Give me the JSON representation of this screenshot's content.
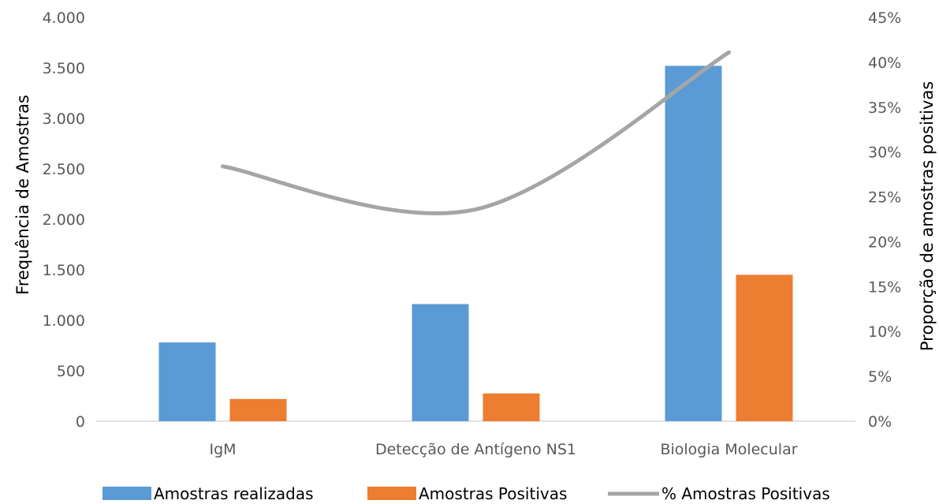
{
  "chart_data": {
    "type": "bar",
    "categories": [
      "IgM",
      "Detecção de Antígeno NS1",
      "Biologia Molecular"
    ],
    "series": [
      {
        "name": "Amostras realizadas",
        "kind": "bar",
        "axis": "left",
        "color": "#5B9BD5",
        "values": [
          780,
          1160,
          3520
        ]
      },
      {
        "name": "Amostras Positivas",
        "kind": "bar",
        "axis": "left",
        "color": "#ED7D31",
        "values": [
          220,
          275,
          1450
        ]
      },
      {
        "name": "% Amostras Positivas",
        "kind": "line",
        "axis": "right",
        "color": "#A5A5A5",
        "smooth": true,
        "values": [
          0.284,
          0.236,
          0.411
        ]
      }
    ],
    "y_left": {
      "label": "Frequência de Amostras",
      "range": [
        0,
        4000
      ],
      "ticks": [
        0,
        500,
        1000,
        1500,
        2000,
        2500,
        3000,
        3500,
        4000
      ],
      "tick_labels": [
        "0",
        "500",
        "1.000",
        "1.500",
        "2.000",
        "2.500",
        "3.000",
        "3.500",
        "4.000"
      ]
    },
    "y_right": {
      "label": "Proporção de amostras  positivas",
      "range": [
        0,
        0.45
      ],
      "ticks": [
        0,
        0.05,
        0.1,
        0.15,
        0.2,
        0.25,
        0.3,
        0.35,
        0.4,
        0.45
      ],
      "tick_labels": [
        "0%",
        "5%",
        "10%",
        "15%",
        "20%",
        "25%",
        "30%",
        "35%",
        "40%",
        "45%"
      ]
    },
    "grid": false,
    "legend_position": "bottom"
  }
}
